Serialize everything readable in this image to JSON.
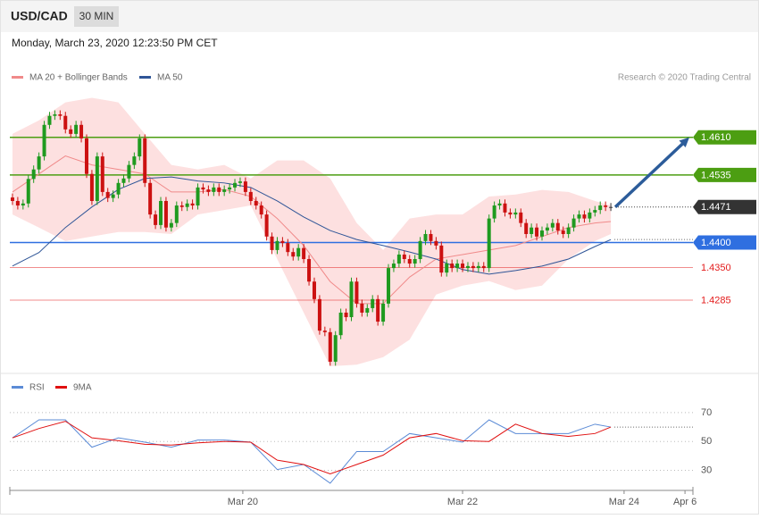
{
  "header": {
    "symbol": "USD/CAD",
    "interval": "30 MIN",
    "timestamp": "Monday, March 23, 2020 12:23:50 PM CET",
    "credit": "Research © 2020 Trading Central"
  },
  "chart_data": [
    {
      "type": "candlestick",
      "up_color": "#1f9a1f",
      "down_color": "#cc1111",
      "doji_color": "#333333",
      "xlim": [
        -0.5,
        128.5
      ],
      "ylim": [
        1.4144,
        1.4706
      ],
      "candles": [
        [
          1.449,
          1.4498,
          1.4475,
          1.4483
        ],
        [
          1.4483,
          1.4491,
          1.4466,
          1.4474
        ],
        [
          1.4474,
          1.4486,
          1.4466,
          1.4478
        ],
        [
          1.4478,
          1.4535,
          1.447,
          1.4527
        ],
        [
          1.4527,
          1.4554,
          1.4519,
          1.4546
        ],
        [
          1.4546,
          1.458,
          1.4538,
          1.4572
        ],
        [
          1.4572,
          1.4643,
          1.4564,
          1.4635
        ],
        [
          1.4635,
          1.4661,
          1.4627,
          1.4653
        ],
        [
          1.4653,
          1.4664,
          1.4645,
          1.4656
        ],
        [
          1.4656,
          1.4664,
          1.4645,
          1.4653
        ],
        [
          1.4653,
          1.4661,
          1.4618,
          1.4626
        ],
        [
          1.4626,
          1.4634,
          1.4609,
          1.4617
        ],
        [
          1.4617,
          1.4643,
          1.4609,
          1.4635
        ],
        [
          1.4635,
          1.4643,
          1.46,
          1.4608
        ],
        [
          1.4608,
          1.4616,
          1.4529,
          1.4537
        ],
        [
          1.4537,
          1.4545,
          1.4475,
          1.4483
        ],
        [
          1.4483,
          1.458,
          1.4475,
          1.4572
        ],
        [
          1.4572,
          1.458,
          1.4493,
          1.4501
        ],
        [
          1.4501,
          1.4509,
          1.4481,
          1.4489
        ],
        [
          1.4489,
          1.4504,
          1.4481,
          1.4496
        ],
        [
          1.4496,
          1.4527,
          1.4488,
          1.4519
        ],
        [
          1.4519,
          1.4536,
          1.4511,
          1.4528
        ],
        [
          1.4528,
          1.4563,
          1.452,
          1.4555
        ],
        [
          1.4555,
          1.458,
          1.4547,
          1.4572
        ],
        [
          1.4572,
          1.4616,
          1.4564,
          1.4608
        ],
        [
          1.4608,
          1.4616,
          1.4511,
          1.4519
        ],
        [
          1.4519,
          1.4527,
          1.4448,
          1.4456
        ],
        [
          1.4456,
          1.4464,
          1.4427,
          1.4435
        ],
        [
          1.4435,
          1.4491,
          1.4427,
          1.4483
        ],
        [
          1.4483,
          1.4491,
          1.4422,
          1.443
        ],
        [
          1.443,
          1.4447,
          1.4422,
          1.4439
        ],
        [
          1.4439,
          1.4482,
          1.4431,
          1.4474
        ],
        [
          1.4474,
          1.4482,
          1.4463,
          1.4471
        ],
        [
          1.4471,
          1.4486,
          1.4463,
          1.4478
        ],
        [
          1.4478,
          1.4486,
          1.4466,
          1.4474
        ],
        [
          1.4474,
          1.4518,
          1.4466,
          1.451
        ],
        [
          1.451,
          1.4518,
          1.4498,
          1.4506
        ],
        [
          1.4506,
          1.4514,
          1.4493,
          1.4501
        ],
        [
          1.4501,
          1.4518,
          1.4493,
          1.451
        ],
        [
          1.451,
          1.4518,
          1.4493,
          1.4501
        ],
        [
          1.4501,
          1.4514,
          1.4493,
          1.4506
        ],
        [
          1.4506,
          1.4518,
          1.4498,
          1.451
        ],
        [
          1.451,
          1.4527,
          1.4502,
          1.4519
        ],
        [
          1.4519,
          1.453,
          1.4511,
          1.4522
        ],
        [
          1.4522,
          1.453,
          1.4493,
          1.4501
        ],
        [
          1.4501,
          1.4509,
          1.4475,
          1.4483
        ],
        [
          1.4483,
          1.4491,
          1.4466,
          1.4474
        ],
        [
          1.4474,
          1.4482,
          1.4448,
          1.4456
        ],
        [
          1.4456,
          1.4464,
          1.4404,
          1.4412
        ],
        [
          1.4412,
          1.442,
          1.4377,
          1.4385
        ],
        [
          1.4385,
          1.4411,
          1.4377,
          1.4403
        ],
        [
          1.4403,
          1.4411,
          1.4391,
          1.4399
        ],
        [
          1.4399,
          1.4407,
          1.4373,
          1.4381
        ],
        [
          1.4381,
          1.4389,
          1.4364,
          1.4372
        ],
        [
          1.4372,
          1.4397,
          1.4364,
          1.4389
        ],
        [
          1.4389,
          1.4397,
          1.4359,
          1.4367
        ],
        [
          1.4367,
          1.4375,
          1.4314,
          1.4322
        ],
        [
          1.4322,
          1.433,
          1.4279,
          1.4287
        ],
        [
          1.4287,
          1.4295,
          1.4216,
          1.4224
        ],
        [
          1.4224,
          1.4232,
          1.4213,
          1.4221
        ],
        [
          1.4221,
          1.4229,
          1.4154,
          1.4162
        ],
        [
          1.4162,
          1.4223,
          1.4154,
          1.4215
        ],
        [
          1.4215,
          1.4268,
          1.4207,
          1.426
        ],
        [
          1.426,
          1.4268,
          1.4243,
          1.4251
        ],
        [
          1.4251,
          1.433,
          1.4243,
          1.4322
        ],
        [
          1.4322,
          1.433,
          1.427,
          1.4278
        ],
        [
          1.4278,
          1.4286,
          1.4252,
          1.426
        ],
        [
          1.426,
          1.4277,
          1.4252,
          1.4269
        ],
        [
          1.4269,
          1.4295,
          1.4261,
          1.4287
        ],
        [
          1.4287,
          1.4295,
          1.4234,
          1.4242
        ],
        [
          1.4242,
          1.4286,
          1.4234,
          1.4278
        ],
        [
          1.4278,
          1.4357,
          1.427,
          1.4349
        ],
        [
          1.4349,
          1.4366,
          1.4341,
          1.4358
        ],
        [
          1.4358,
          1.4384,
          1.435,
          1.4376
        ],
        [
          1.4376,
          1.4384,
          1.4359,
          1.4367
        ],
        [
          1.4367,
          1.4375,
          1.435,
          1.4358
        ],
        [
          1.4358,
          1.4375,
          1.435,
          1.4367
        ],
        [
          1.4367,
          1.4411,
          1.4359,
          1.4403
        ],
        [
          1.4403,
          1.4425,
          1.4395,
          1.4417
        ],
        [
          1.4417,
          1.4425,
          1.4395,
          1.4403
        ],
        [
          1.4403,
          1.4411,
          1.4386,
          1.4394
        ],
        [
          1.4394,
          1.4402,
          1.4332,
          1.434
        ],
        [
          1.434,
          1.4366,
          1.4332,
          1.4358
        ],
        [
          1.4358,
          1.4366,
          1.4341,
          1.4349
        ],
        [
          1.4349,
          1.4366,
          1.4341,
          1.4358
        ],
        [
          1.4358,
          1.4366,
          1.4341,
          1.4349
        ],
        [
          1.4349,
          1.4361,
          1.4341,
          1.4353
        ],
        [
          1.4353,
          1.4361,
          1.4341,
          1.4349
        ],
        [
          1.4349,
          1.4361,
          1.4341,
          1.4353
        ],
        [
          1.4353,
          1.4361,
          1.4341,
          1.4349
        ],
        [
          1.4349,
          1.4456,
          1.4341,
          1.4448
        ],
        [
          1.4448,
          1.4482,
          1.444,
          1.4474
        ],
        [
          1.4474,
          1.4486,
          1.4466,
          1.4478
        ],
        [
          1.4478,
          1.4486,
          1.4452,
          1.446
        ],
        [
          1.446,
          1.4468,
          1.4448,
          1.4456
        ],
        [
          1.4456,
          1.4468,
          1.4448,
          1.446
        ],
        [
          1.446,
          1.4468,
          1.4431,
          1.4439
        ],
        [
          1.4439,
          1.4447,
          1.4409,
          1.4417
        ],
        [
          1.4417,
          1.4438,
          1.4409,
          1.443
        ],
        [
          1.443,
          1.4438,
          1.4404,
          1.4412
        ],
        [
          1.4412,
          1.4432,
          1.4404,
          1.4424
        ],
        [
          1.4424,
          1.4438,
          1.4416,
          1.443
        ],
        [
          1.443,
          1.4447,
          1.4422,
          1.4439
        ],
        [
          1.4439,
          1.4447,
          1.4416,
          1.4424
        ],
        [
          1.4424,
          1.4432,
          1.4409,
          1.4417
        ],
        [
          1.4417,
          1.4438,
          1.4409,
          1.443
        ],
        [
          1.443,
          1.4456,
          1.4422,
          1.4448
        ],
        [
          1.4448,
          1.4464,
          1.444,
          1.4456
        ],
        [
          1.4456,
          1.4464,
          1.444,
          1.4448
        ],
        [
          1.4448,
          1.4468,
          1.444,
          1.446
        ],
        [
          1.446,
          1.4473,
          1.4452,
          1.4465
        ],
        [
          1.4465,
          1.4482,
          1.4457,
          1.4474
        ],
        [
          1.4474,
          1.4482,
          1.4463,
          1.4471
        ],
        [
          1.4471,
          1.4479,
          1.4463,
          1.4471
        ]
      ],
      "x": [
        0,
        5,
        10,
        15,
        20,
        25,
        30,
        35,
        40,
        45,
        50,
        55,
        60,
        65,
        70,
        75,
        80,
        85,
        90,
        95,
        100,
        105,
        110,
        113
      ],
      "series": [
        {
          "name": "MA 20 + Bollinger Bands",
          "color": "#f08a8a",
          "band_color": "#fde0e0",
          "values": [
            1.4501,
            1.4537,
            1.4573,
            1.4555,
            1.4546,
            1.4537,
            1.4501,
            1.4501,
            1.4506,
            1.4492,
            1.4448,
            1.4394,
            1.4322,
            1.4278,
            1.4278,
            1.4331,
            1.4367,
            1.4376,
            1.4385,
            1.4394,
            1.4412,
            1.443,
            1.4439,
            1.4442
          ],
          "upper": [
            1.4617,
            1.4644,
            1.468,
            1.4689,
            1.468,
            1.4617,
            1.4555,
            1.4546,
            1.4555,
            1.4528,
            1.4564,
            1.4564,
            1.4528,
            1.4439,
            1.4385,
            1.4448,
            1.4456,
            1.4456,
            1.4492,
            1.4496,
            1.4505,
            1.4501,
            1.4483,
            1.4474
          ],
          "lower": [
            1.4456,
            1.443,
            1.4403,
            1.4412,
            1.4421,
            1.4421,
            1.4417,
            1.4456,
            1.4465,
            1.4474,
            1.4367,
            1.426,
            1.4153,
            1.4156,
            1.4171,
            1.4206,
            1.4296,
            1.4314,
            1.4323,
            1.4305,
            1.4314,
            1.4367,
            1.4403,
            1.4417
          ]
        },
        {
          "name": "MA 50",
          "color": "#2f5597",
          "values": [
            1.4353,
            1.438,
            1.443,
            1.4471,
            1.4506,
            1.4528,
            1.4531,
            1.4523,
            1.4519,
            1.451,
            1.4483,
            1.4451,
            1.4424,
            1.4406,
            1.4394,
            1.4381,
            1.4367,
            1.4346,
            1.4337,
            1.4344,
            1.4353,
            1.4367,
            1.4392,
            1.4406
          ]
        }
      ],
      "levels": [
        {
          "value": 1.461,
          "label": "1.4610",
          "color": "#4c9e12",
          "style": "box",
          "line": "full"
        },
        {
          "value": 1.4535,
          "label": "1.4535",
          "color": "#4c9e12",
          "style": "box",
          "line": "full"
        },
        {
          "value": 1.4471,
          "label": "1.4471",
          "color": "#333333",
          "style": "box",
          "line": "end"
        },
        {
          "value": 1.44,
          "label": "1.4400",
          "color": "#2f6fe0",
          "style": "box",
          "line": "full"
        },
        {
          "value": 1.435,
          "label": "1.4350",
          "color": "#e31b1b",
          "style": "text",
          "line": "full"
        },
        {
          "value": 1.4285,
          "label": "1.4285",
          "color": "#e31b1b",
          "style": "text",
          "line": "full"
        }
      ],
      "forecast_color": "#2c5c9a"
    },
    {
      "type": "line",
      "xlim": [
        -0.5,
        128.5
      ],
      "ylim": [
        18.5,
        80.5
      ],
      "yticks": [
        30,
        50,
        70
      ],
      "xticks": [
        {
          "value": 43.5,
          "label": "Mar 20"
        },
        {
          "value": 85,
          "label": "Mar 22"
        },
        {
          "value": 115.5,
          "label": "Mar 24"
        },
        {
          "value": 127,
          "label": "Apr 6"
        }
      ],
      "x": [
        0,
        5,
        10,
        15,
        20,
        25,
        30,
        35,
        40,
        45,
        50,
        55,
        60,
        65,
        70,
        75,
        80,
        85,
        90,
        95,
        100,
        105,
        110,
        113
      ],
      "series": [
        {
          "name": "RSI",
          "color": "#5b8bd6",
          "values": [
            52.5,
            65,
            65,
            46,
            52.5,
            49.5,
            46,
            51,
            51,
            49.5,
            30.5,
            34,
            21,
            43,
            43,
            55.5,
            52.5,
            49.5,
            65,
            55.5,
            55.5,
            55.5,
            62,
            60
          ]
        },
        {
          "name": "9MA",
          "color": "#e01010",
          "values": [
            52.5,
            59,
            64,
            52.5,
            50.5,
            48,
            47.5,
            49,
            50,
            49.5,
            37,
            34,
            27.5,
            34,
            40.5,
            52.5,
            55.5,
            50.5,
            50,
            62,
            55.5,
            53.5,
            55.5,
            60
          ]
        }
      ]
    }
  ]
}
